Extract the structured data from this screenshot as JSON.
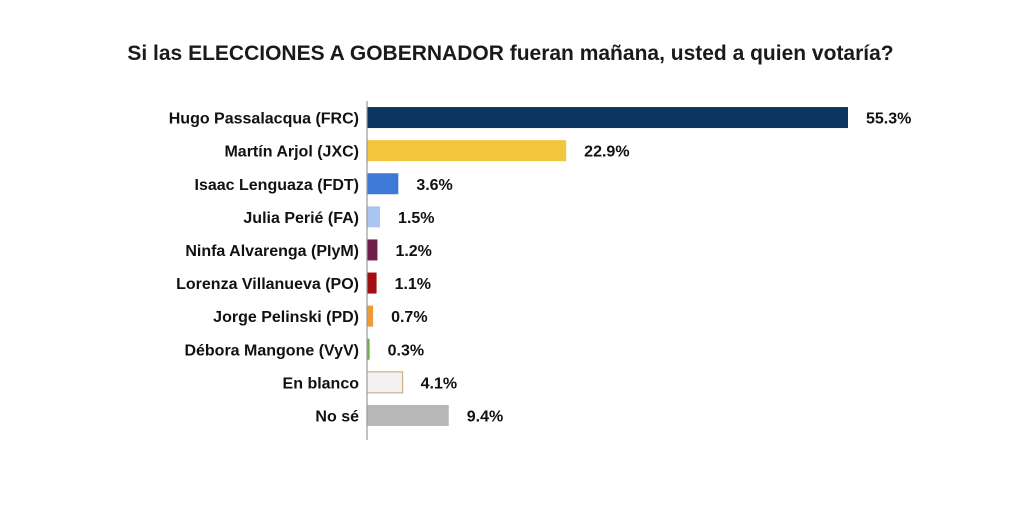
{
  "chart_data": {
    "type": "bar",
    "orientation": "horizontal",
    "title": "Si las ELECCIONES A GOBERNADOR fueran mañana, usted a quien votaría?",
    "xlabel": "",
    "ylabel": "",
    "legend": "none",
    "grid": false,
    "xlim": [
      0,
      60
    ],
    "categories": [
      "Hugo Passalacqua (FRC)",
      "Martín Arjol (JXC)",
      "Isaac Lenguaza (FDT)",
      "Julia Perié (FA)",
      "Ninfa Alvarenga (PIyM)",
      "Lorenza Villanueva (PO)",
      "Jorge Pelinski (PD)",
      "Débora Mangone (VyV)",
      "En blanco",
      "No sé"
    ],
    "values": [
      55.3,
      22.9,
      3.6,
      1.5,
      1.2,
      1.1,
      0.7,
      0.3,
      4.1,
      9.4
    ],
    "value_labels": [
      "55.3%",
      "22.9%",
      "3.6%",
      "1.5%",
      "1.2%",
      "1.1%",
      "0.7%",
      "0.3%",
      "4.1%",
      "9.4%"
    ],
    "colors": [
      "#0b3561",
      "#f2c53d",
      "#3d7ad8",
      "#a9c5f0",
      "#6e1f47",
      "#a00f12",
      "#ec9a3c",
      "#70ad47",
      "#f2f2f2",
      "#b7b7b7"
    ],
    "bar_outline_colors": [
      "",
      "",
      "",
      "",
      "",
      "",
      "",
      "",
      "#c9a273",
      ""
    ],
    "axis_color": "#9a9a9a"
  }
}
